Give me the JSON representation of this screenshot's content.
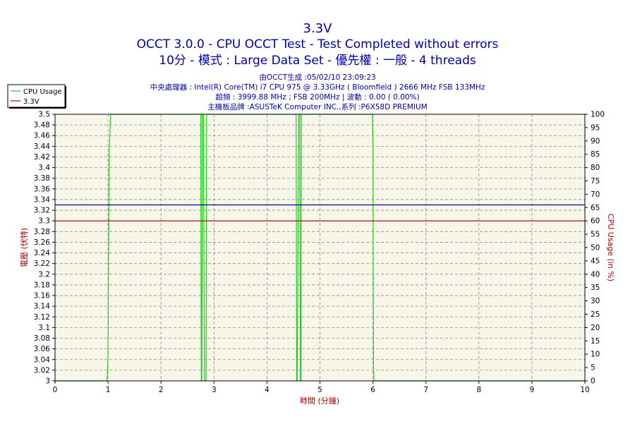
{
  "chart_data": {
    "type": "line",
    "title": "3.3V",
    "subtitle_1": "OCCT 3.0.0 - CPU OCCT Test - Test Completed without errors",
    "subtitle_2": "10分 - 模式 : Large Data Set - 優先權 : 一般 - 4 threads",
    "info_lines": [
      "由OCCT生成 :05/02/10 23:09:23",
      "中央處理器 : Intel(R) Core(TM) i7 CPU 975 @ 3.33GHz ( Bloomfield ) 2666 MHz FSB 133MHz",
      "超頻 : 3999.88 MHz ; FSB 200MHz | 波動 : 0.00 ( 0.00%)",
      "主機板品牌 :ASUSTeK Computer INC.,系列 :P6X58D PREMIUM"
    ],
    "xlabel": "時間 (分鐘)",
    "ylabel_left": "電壓 (伏特)",
    "ylabel_right": "CPU Usage (in %)",
    "xlim": [
      0,
      10
    ],
    "ylim_left": [
      3.0,
      3.5
    ],
    "ylim_right": [
      0,
      100
    ],
    "x_ticks": [
      "0",
      "1",
      "2",
      "3",
      "4",
      "5",
      "6",
      "7",
      "8",
      "9",
      "10"
    ],
    "y_left_ticks": [
      "3",
      "3.02",
      "3.04",
      "3.06",
      "3.08",
      "3.1",
      "3.12",
      "3.14",
      "3.16",
      "3.18",
      "3.2",
      "3.22",
      "3.24",
      "3.26",
      "3.28",
      "3.3",
      "3.32",
      "3.34",
      "3.36",
      "3.38",
      "3.4",
      "3.42",
      "3.44",
      "3.46",
      "3.48",
      "3.5"
    ],
    "y_right_ticks": [
      "0",
      "5",
      "10",
      "15",
      "20",
      "25",
      "30",
      "35",
      "40",
      "45",
      "50",
      "55",
      "60",
      "65",
      "70",
      "75",
      "80",
      "85",
      "90",
      "95",
      "100"
    ],
    "grid": true,
    "legend_position": "top-left",
    "colors": {
      "title": "#0000aa",
      "info": "#0000aa",
      "axis_label": "#aa0000",
      "cpu_usage": "#22cc22",
      "voltage": "#aa0000",
      "blue_line": "#0000aa",
      "plot_bg": "#f8f6e8",
      "grid": "#888888"
    },
    "series": [
      {
        "name": "CPU Usage",
        "axis": "right",
        "x": [
          0,
          0.98,
          1.0,
          1.02,
          1.05,
          1.06,
          1.07,
          2.75,
          2.76,
          2.77,
          2.78,
          2.8,
          2.82,
          2.84,
          2.85,
          2.86,
          2.88,
          2.9,
          4.55,
          4.56,
          4.57,
          4.6,
          4.62,
          4.63,
          4.64,
          4.65,
          5.99,
          6.0,
          6.01,
          6.02,
          6.03,
          6.04,
          10
        ],
        "y": [
          0,
          0,
          8,
          85,
          100,
          100,
          100,
          100,
          0,
          0,
          100,
          100,
          0,
          0,
          0,
          100,
          100,
          100,
          100,
          0,
          0,
          100,
          100,
          0,
          0,
          100,
          100,
          88,
          5,
          0,
          0,
          0,
          0
        ]
      },
      {
        "name": "3.3V",
        "axis": "left",
        "x": [
          0,
          10
        ],
        "y": [
          3.3,
          3.3
        ]
      },
      {
        "axis": "left",
        "x": [
          0,
          10
        ],
        "y": [
          3.33,
          3.33
        ]
      }
    ]
  }
}
